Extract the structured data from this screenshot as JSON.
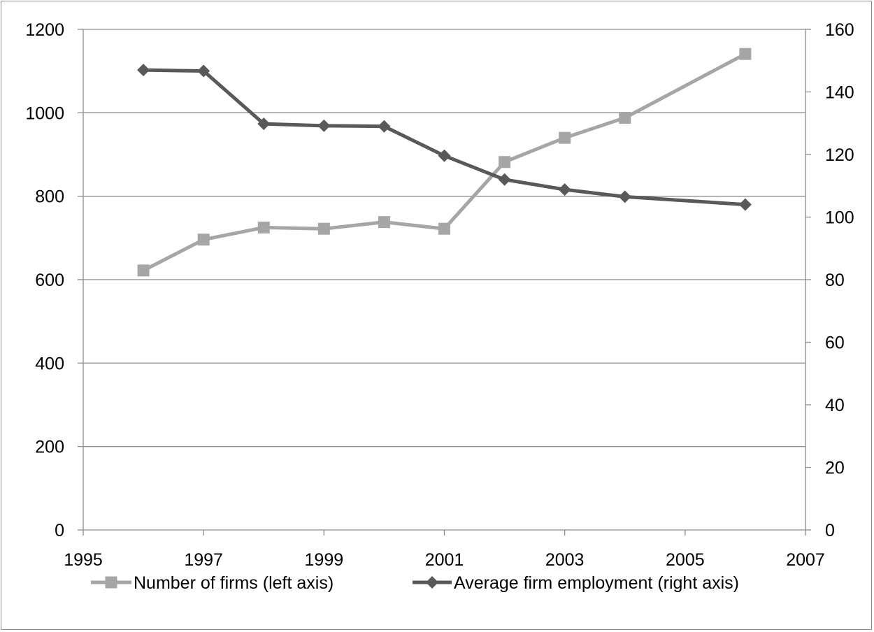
{
  "chart_data": {
    "type": "line",
    "title": "",
    "xlabel": "",
    "ylabel": "",
    "y2label": "",
    "xlim": [
      1995,
      2007
    ],
    "x_ticks": [
      1995,
      1997,
      1999,
      2001,
      2003,
      2005,
      2007
    ],
    "ylim": [
      0,
      1200
    ],
    "y_ticks": [
      0,
      200,
      400,
      600,
      800,
      1000,
      1200
    ],
    "y2lim": [
      0,
      160
    ],
    "y2_ticks": [
      0,
      20,
      40,
      60,
      80,
      100,
      120,
      140,
      160
    ],
    "grid": "horizontal",
    "legend_position": "bottom",
    "series": [
      {
        "name": "Number of firms (left axis)",
        "axis": "left",
        "marker": "square",
        "color": "#a6a6a6",
        "x": [
          1996,
          1997,
          1998,
          1999,
          2000,
          2001,
          2002,
          2003,
          2004,
          2006
        ],
        "values": [
          622,
          696,
          725,
          722,
          738,
          722,
          882,
          940,
          988,
          1141
        ]
      },
      {
        "name": "Average firm employment (right axis)",
        "axis": "right",
        "marker": "diamond",
        "color": "#595959",
        "x": [
          1996,
          1997,
          1998,
          1999,
          2000,
          2001,
          2002,
          2003,
          2004,
          2006
        ],
        "values": [
          147,
          146.7,
          129.8,
          129.2,
          129,
          119.6,
          112,
          108.8,
          106.5,
          104
        ]
      }
    ]
  }
}
